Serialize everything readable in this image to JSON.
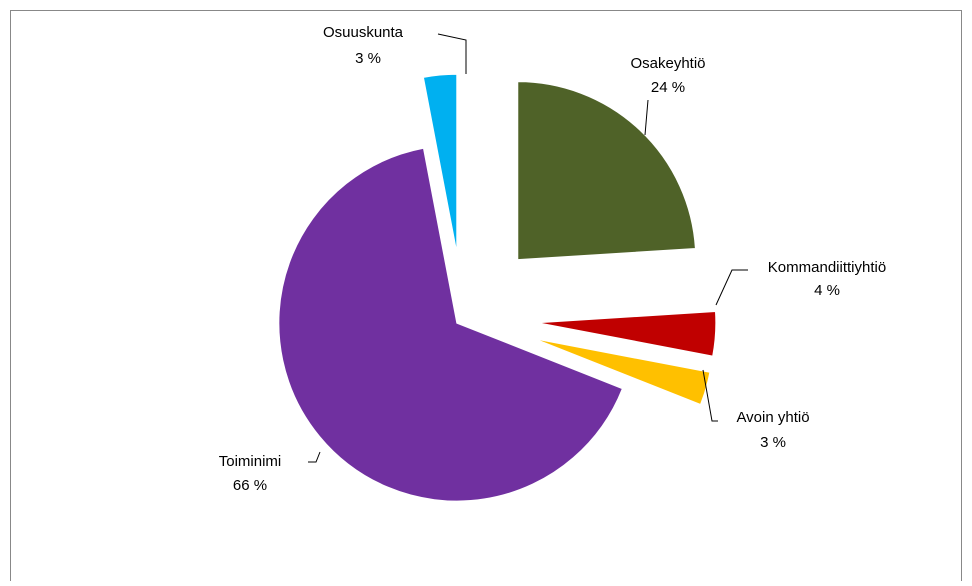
{
  "chart_data": {
    "type": "pie",
    "categories": [
      "Osakeyhtiö",
      "Kommandiittiyhtiö",
      "Avoin yhtiö",
      "Toiminimi",
      "Osuuskunta"
    ],
    "values": [
      24,
      4,
      3,
      66,
      3
    ],
    "value_labels": [
      "24 %",
      "4 %",
      "3 %",
      "66 %",
      "3 %"
    ],
    "colors": [
      "#4f6228",
      "#c00000",
      "#ffc000",
      "#7030a0",
      "#00b0f0"
    ]
  }
}
